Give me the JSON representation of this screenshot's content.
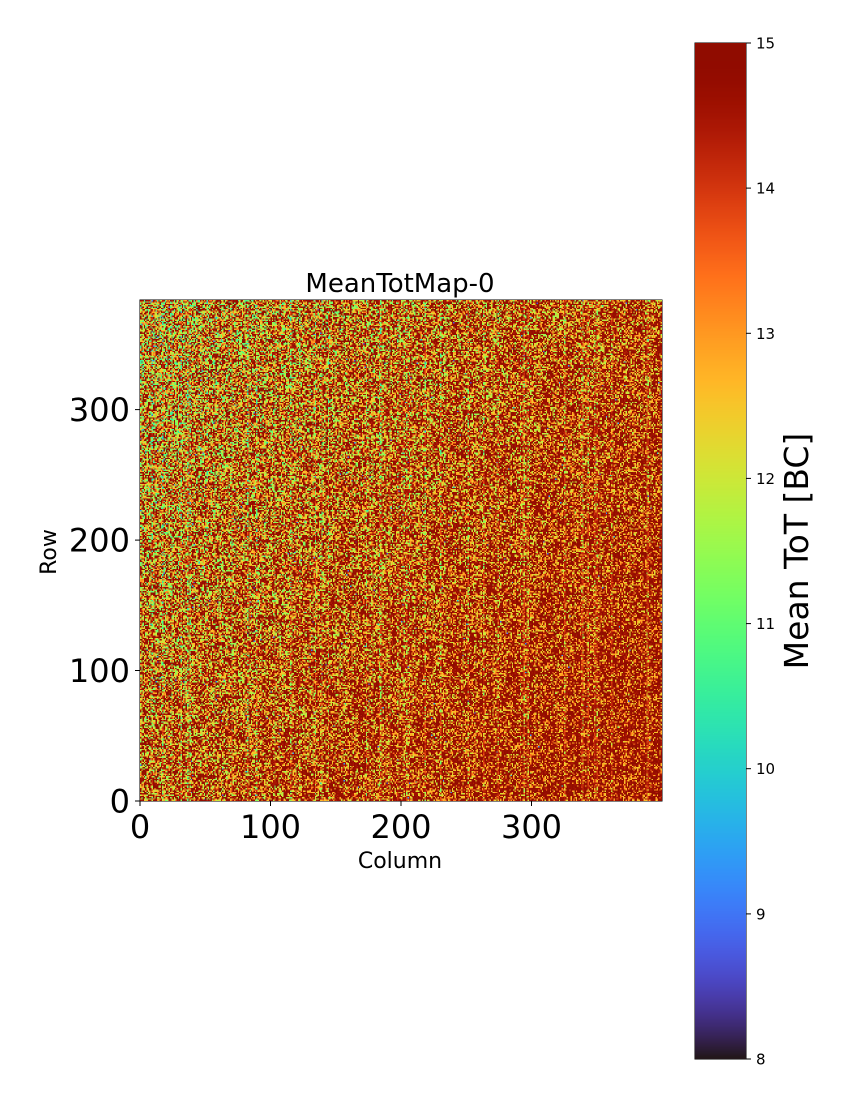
{
  "chart_data": {
    "type": "heatmap",
    "title": "MeanTotMap-0",
    "xlabel": "Column",
    "ylabel": "Row",
    "xlim": [
      0,
      400
    ],
    "ylim": [
      0,
      384
    ],
    "grid_shape": {
      "columns": 400,
      "rows": 384
    },
    "x_ticks": [
      0,
      100,
      200,
      300
    ],
    "y_ticks": [
      0,
      100,
      200,
      300
    ],
    "x_tick_labels": [
      "0",
      "100",
      "200",
      "300"
    ],
    "y_tick_labels": [
      "0",
      "100",
      "200",
      "300"
    ],
    "colorbar": {
      "label": "Mean ToT [BC]",
      "colormap": "turbo",
      "range": [
        8,
        15
      ],
      "ticks": [
        8,
        9,
        10,
        11,
        12,
        13,
        14,
        15
      ],
      "tick_labels": [
        "8",
        "9",
        "10",
        "11",
        "12",
        "13",
        "14",
        "15"
      ],
      "placement": "right"
    },
    "value_summary": {
      "typical_value": 14.6,
      "minimum_visible": 11,
      "maximum": 15,
      "note": "Most pixels saturate near 15; lower values (12–13, occasionally ~11) concentrate at low column numbers and high row numbers, with faint vertical stripes."
    }
  }
}
